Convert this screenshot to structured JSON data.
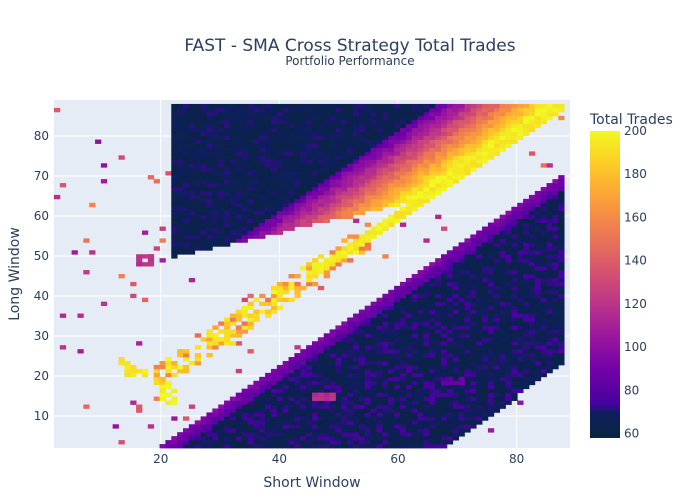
{
  "chart_data": {
    "type": "heatmap",
    "title": "FAST - SMA Cross Strategy Total Trades",
    "subtitle": "Portfolio Performance",
    "xlabel": "Short Window",
    "ylabel": "Long Window",
    "xlim": [
      2,
      89
    ],
    "ylim": [
      2,
      89
    ],
    "x_ticks": [
      20,
      40,
      60,
      80
    ],
    "y_ticks": [
      10,
      20,
      30,
      40,
      50,
      60,
      70,
      80
    ],
    "grid": true,
    "colorbar": {
      "title": "Total Trades",
      "range": [
        58,
        200
      ],
      "ticks": [
        60,
        80,
        100,
        120,
        140,
        160,
        180,
        200
      ]
    },
    "note": "Dense band of highest trade counts (~200) along the diagonal Long Window ≈ Short Window; counts fall toward ~60 far from the diagonal (upper-left and lower-right regions). Scattered sparse cells in the lower-left.",
    "samples": [
      {
        "x": 85,
        "y": 86,
        "z": 200
      },
      {
        "x": 80,
        "y": 81,
        "z": 195
      },
      {
        "x": 70,
        "y": 70,
        "z": 190
      },
      {
        "x": 60,
        "y": 58,
        "z": 180
      },
      {
        "x": 55,
        "y": 52,
        "z": 170
      },
      {
        "x": 50,
        "y": 48,
        "z": 175
      },
      {
        "x": 45,
        "y": 46,
        "z": 160
      },
      {
        "x": 40,
        "y": 40,
        "z": 190
      },
      {
        "x": 35,
        "y": 36,
        "z": 150
      },
      {
        "x": 30,
        "y": 28,
        "z": 190
      },
      {
        "x": 25,
        "y": 30,
        "z": 190
      },
      {
        "x": 15,
        "y": 21,
        "z": 190
      },
      {
        "x": 20,
        "y": 14,
        "z": 195
      },
      {
        "x": 60,
        "y": 80,
        "z": 62
      },
      {
        "x": 40,
        "y": 80,
        "z": 60
      },
      {
        "x": 80,
        "y": 40,
        "z": 62
      },
      {
        "x": 85,
        "y": 25,
        "z": 65
      },
      {
        "x": 75,
        "y": 60,
        "z": 90
      },
      {
        "x": 50,
        "y": 60,
        "z": 95
      },
      {
        "x": 15,
        "y": 48,
        "z": 115
      },
      {
        "x": 50,
        "y": 15,
        "z": 110
      },
      {
        "x": 70,
        "y": 18,
        "z": 85
      }
    ]
  }
}
